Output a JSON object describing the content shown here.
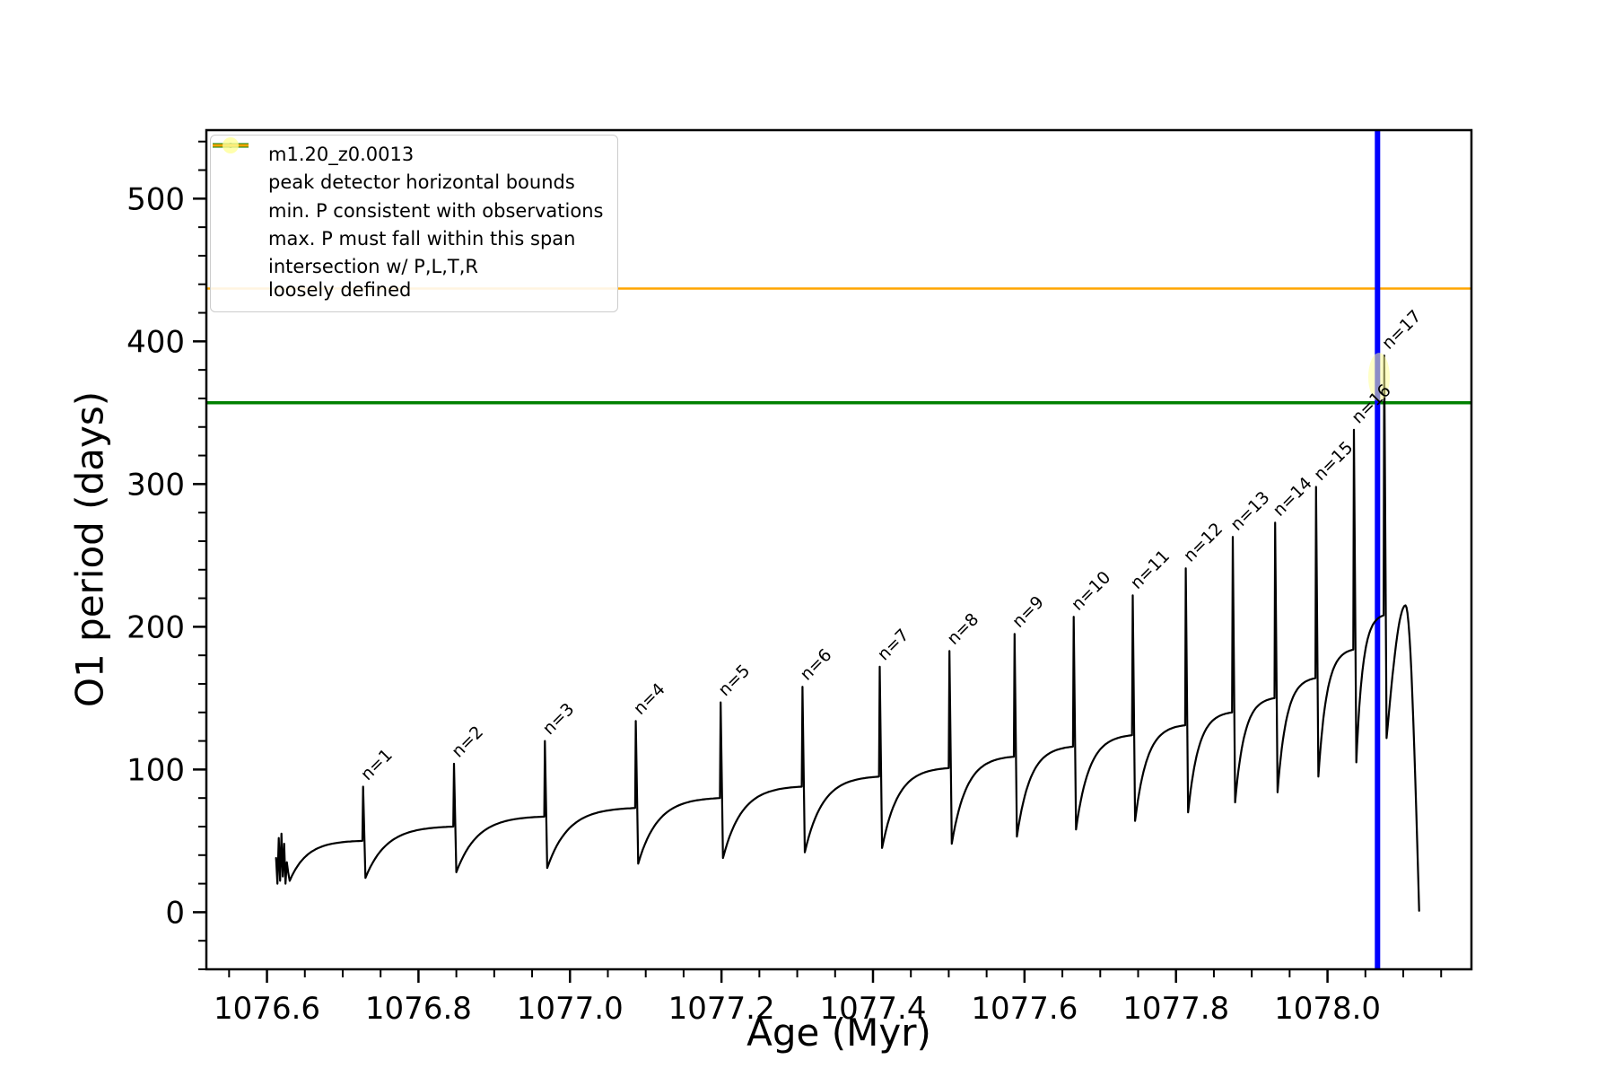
{
  "figure": {
    "background": "#ffffff"
  },
  "chart_data": {
    "type": "line",
    "title": "",
    "xlabel": "Age (Myr)",
    "ylabel": "O1 period (days)",
    "xlim": [
      1076.52,
      1078.19
    ],
    "ylim": [
      -40,
      548
    ],
    "x_major_ticks": [
      1076.6,
      1076.8,
      1077.0,
      1077.2,
      1077.4,
      1077.6,
      1077.8,
      1078.0
    ],
    "x_minor_step": 0.05,
    "y_major_ticks": [
      0,
      100,
      200,
      300,
      400,
      500
    ],
    "y_minor_step": 20,
    "series_name": "m1.20_z0.0013",
    "series_color": "#000000",
    "intro_cluster": {
      "x_start": 1076.612,
      "x_end": 1076.628,
      "ys": [
        38,
        20,
        52,
        22,
        55,
        25,
        48,
        20,
        35,
        28
      ]
    },
    "cycles": [
      {
        "label": "n=1",
        "x0": 1076.63,
        "x1": 1076.726,
        "dip": 22,
        "plateau": 50,
        "peak": 88
      },
      {
        "label": "n=2",
        "x0": 1076.73,
        "x1": 1076.846,
        "dip": 24,
        "plateau": 60,
        "peak": 104
      },
      {
        "label": "n=3",
        "x0": 1076.85,
        "x1": 1076.966,
        "dip": 28,
        "plateau": 67,
        "peak": 120
      },
      {
        "label": "n=4",
        "x0": 1076.97,
        "x1": 1077.086,
        "dip": 31,
        "plateau": 73,
        "peak": 134
      },
      {
        "label": "n=5",
        "x0": 1077.09,
        "x1": 1077.198,
        "dip": 34,
        "plateau": 80,
        "peak": 147
      },
      {
        "label": "n=6",
        "x0": 1077.202,
        "x1": 1077.306,
        "dip": 38,
        "plateau": 88,
        "peak": 158
      },
      {
        "label": "n=7",
        "x0": 1077.31,
        "x1": 1077.408,
        "dip": 42,
        "plateau": 95,
        "peak": 172
      },
      {
        "label": "n=8",
        "x0": 1077.412,
        "x1": 1077.5,
        "dip": 45,
        "plateau": 101,
        "peak": 183
      },
      {
        "label": "n=9",
        "x0": 1077.504,
        "x1": 1077.586,
        "dip": 48,
        "plateau": 109,
        "peak": 195
      },
      {
        "label": "n=10",
        "x0": 1077.59,
        "x1": 1077.664,
        "dip": 53,
        "plateau": 116,
        "peak": 207
      },
      {
        "label": "n=11",
        "x0": 1077.668,
        "x1": 1077.742,
        "dip": 58,
        "plateau": 124,
        "peak": 222
      },
      {
        "label": "n=12",
        "x0": 1077.746,
        "x1": 1077.812,
        "dip": 64,
        "plateau": 131,
        "peak": 241
      },
      {
        "label": "n=13",
        "x0": 1077.816,
        "x1": 1077.874,
        "dip": 70,
        "plateau": 140,
        "peak": 263
      },
      {
        "label": "n=14",
        "x0": 1077.878,
        "x1": 1077.93,
        "dip": 77,
        "plateau": 150,
        "peak": 273
      },
      {
        "label": "n=15",
        "x0": 1077.934,
        "x1": 1077.984,
        "dip": 84,
        "plateau": 164,
        "peak": 298
      },
      {
        "label": "n=16",
        "x0": 1077.988,
        "x1": 1078.034,
        "dip": 95,
        "plateau": 184,
        "peak": 338
      },
      {
        "label": "n=17",
        "x0": 1078.038,
        "x1": 1078.074,
        "dip": 105,
        "plateau": 208,
        "peak": 390
      }
    ],
    "tail": {
      "x_start": 1078.078,
      "y_start": 122,
      "x_peak": 1078.103,
      "y_peak": 215,
      "x_end": 1078.121,
      "y_end": 1
    },
    "reference_lines": {
      "blue_vline": {
        "x": 1078.066,
        "color": "#0000ff",
        "width": 6,
        "label": "peak detector horizontal bounds"
      },
      "green_hline": {
        "y": 357,
        "color": "#008000",
        "width": 3.5,
        "label": "min. P consistent with observations"
      },
      "orange_hline": {
        "y": 437,
        "color": "#ffa500",
        "width": 2.5,
        "label": "max. P must fall within this span"
      }
    },
    "intersection_marker": {
      "x": 1078.068,
      "y": 375,
      "color": "#ffff99",
      "opacity": 0.55,
      "label": "intersection w/ P,L,T,R\nloosely defined"
    }
  },
  "legend": {
    "items": [
      {
        "swatch": "line-dot",
        "color": "#000000",
        "label": "m1.20_z0.0013"
      },
      {
        "swatch": "line-thick",
        "color": "#0000ff",
        "label": "peak detector horizontal bounds"
      },
      {
        "swatch": "line-thick",
        "color": "#008000",
        "label": "min. P consistent with observations"
      },
      {
        "swatch": "line-thin",
        "color": "#ffa500",
        "label": "max. P must fall within this span"
      },
      {
        "swatch": "dot",
        "color": "#ffff99",
        "label": "intersection w/ P,L,T,R\nloosely defined"
      }
    ]
  }
}
